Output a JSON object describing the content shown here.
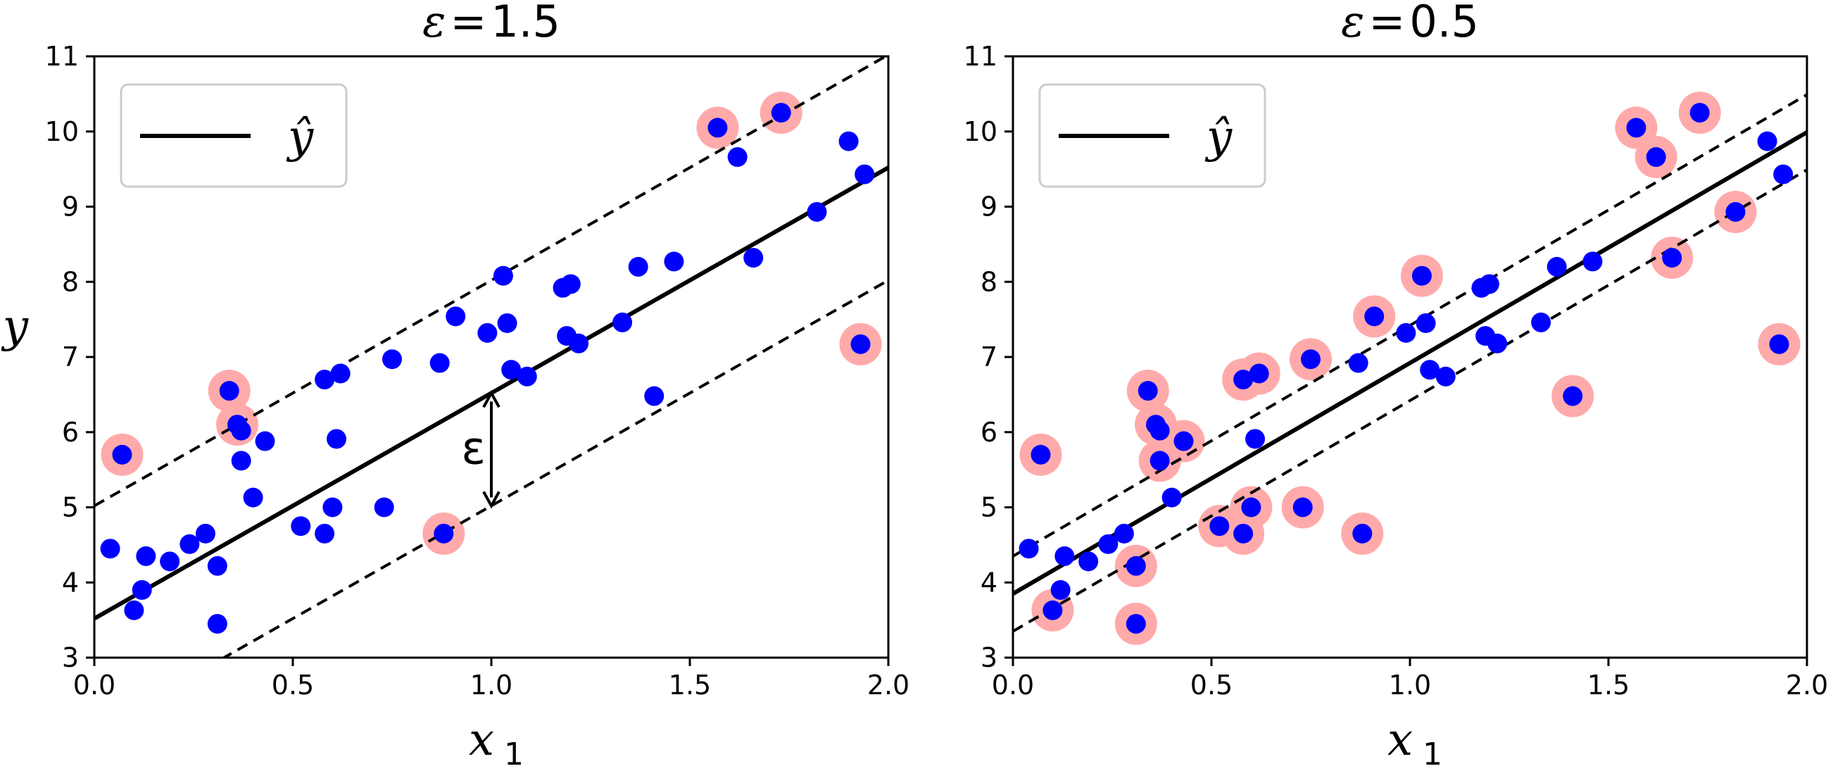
{
  "chart_data": [
    {
      "type": "scatter",
      "title_parts": {
        "symbol": "ε",
        "equals": "=",
        "value": "1.5"
      },
      "epsilon": 1.5,
      "xlabel": "x",
      "xlabel_sub": "1",
      "ylabel": "y",
      "xlim": [
        0,
        2
      ],
      "ylim": [
        3,
        11
      ],
      "xticks": [
        "0.0",
        "0.5",
        "1.0",
        "1.5",
        "2.0"
      ],
      "yticks": [
        "3",
        "4",
        "5",
        "6",
        "7",
        "8",
        "9",
        "10",
        "11"
      ],
      "legend": {
        "label": "ŷ",
        "position": "top-left"
      },
      "regression_line": {
        "intercept": 3.52,
        "slope": 3.0
      },
      "epsilon_annotation": {
        "text": "ε",
        "x": 1.0,
        "y_from": 6.52,
        "y_to": 5.02
      },
      "points": [
        [
          0.04,
          4.45
        ],
        [
          0.07,
          5.7
        ],
        [
          0.1,
          3.63
        ],
        [
          0.12,
          3.9
        ],
        [
          0.13,
          4.35
        ],
        [
          0.19,
          4.28
        ],
        [
          0.24,
          4.51
        ],
        [
          0.28,
          4.65
        ],
        [
          0.31,
          4.22
        ],
        [
          0.31,
          3.45
        ],
        [
          0.34,
          6.55
        ],
        [
          0.36,
          6.1
        ],
        [
          0.37,
          6.02
        ],
        [
          0.37,
          5.62
        ],
        [
          0.4,
          5.13
        ],
        [
          0.43,
          5.88
        ],
        [
          0.52,
          4.75
        ],
        [
          0.58,
          4.65
        ],
        [
          0.58,
          6.7
        ],
        [
          0.6,
          5.0
        ],
        [
          0.61,
          5.91
        ],
        [
          0.62,
          6.78
        ],
        [
          0.73,
          5.0
        ],
        [
          0.75,
          6.97
        ],
        [
          0.87,
          6.92
        ],
        [
          0.88,
          4.65
        ],
        [
          0.91,
          7.54
        ],
        [
          0.99,
          7.32
        ],
        [
          1.03,
          8.08
        ],
        [
          1.04,
          7.45
        ],
        [
          1.05,
          6.83
        ],
        [
          1.09,
          6.74
        ],
        [
          1.18,
          7.92
        ],
        [
          1.19,
          7.28
        ],
        [
          1.2,
          7.97
        ],
        [
          1.22,
          7.18
        ],
        [
          1.33,
          7.46
        ],
        [
          1.37,
          8.2
        ],
        [
          1.41,
          6.48
        ],
        [
          1.46,
          8.27
        ],
        [
          1.57,
          10.05
        ],
        [
          1.62,
          9.66
        ],
        [
          1.66,
          8.32
        ],
        [
          1.73,
          10.25
        ],
        [
          1.82,
          8.93
        ],
        [
          1.9,
          9.87
        ],
        [
          1.93,
          7.17
        ],
        [
          1.94,
          9.43
        ]
      ],
      "support_vectors": [
        [
          0.07,
          5.7
        ],
        [
          0.34,
          6.55
        ],
        [
          0.36,
          6.1
        ],
        [
          0.88,
          4.65
        ],
        [
          1.57,
          10.05
        ],
        [
          1.73,
          10.25
        ],
        [
          1.93,
          7.17
        ]
      ]
    },
    {
      "type": "scatter",
      "title_parts": {
        "symbol": "ε",
        "equals": "=",
        "value": "0.5"
      },
      "epsilon": 0.5,
      "xlabel": "x",
      "xlabel_sub": "1",
      "ylabel": "",
      "xlim": [
        0,
        2
      ],
      "ylim": [
        3,
        11
      ],
      "xticks": [
        "0.0",
        "0.5",
        "1.0",
        "1.5",
        "2.0"
      ],
      "yticks": [
        "3",
        "4",
        "5",
        "6",
        "7",
        "8",
        "9",
        "10",
        "11"
      ],
      "legend": {
        "label": "ŷ",
        "position": "top-left"
      },
      "regression_line": {
        "intercept": 3.85,
        "slope": 3.07
      },
      "points": [
        [
          0.04,
          4.45
        ],
        [
          0.07,
          5.7
        ],
        [
          0.1,
          3.63
        ],
        [
          0.12,
          3.9
        ],
        [
          0.13,
          4.35
        ],
        [
          0.19,
          4.28
        ],
        [
          0.24,
          4.51
        ],
        [
          0.28,
          4.65
        ],
        [
          0.31,
          4.22
        ],
        [
          0.31,
          3.45
        ],
        [
          0.34,
          6.55
        ],
        [
          0.36,
          6.1
        ],
        [
          0.37,
          6.02
        ],
        [
          0.37,
          5.62
        ],
        [
          0.4,
          5.13
        ],
        [
          0.43,
          5.88
        ],
        [
          0.52,
          4.75
        ],
        [
          0.58,
          4.65
        ],
        [
          0.58,
          6.7
        ],
        [
          0.6,
          5.0
        ],
        [
          0.61,
          5.91
        ],
        [
          0.62,
          6.78
        ],
        [
          0.73,
          5.0
        ],
        [
          0.75,
          6.97
        ],
        [
          0.87,
          6.92
        ],
        [
          0.88,
          4.65
        ],
        [
          0.91,
          7.54
        ],
        [
          0.99,
          7.32
        ],
        [
          1.03,
          8.08
        ],
        [
          1.04,
          7.45
        ],
        [
          1.05,
          6.83
        ],
        [
          1.09,
          6.74
        ],
        [
          1.18,
          7.92
        ],
        [
          1.19,
          7.28
        ],
        [
          1.2,
          7.97
        ],
        [
          1.22,
          7.18
        ],
        [
          1.33,
          7.46
        ],
        [
          1.37,
          8.2
        ],
        [
          1.41,
          6.48
        ],
        [
          1.46,
          8.27
        ],
        [
          1.57,
          10.05
        ],
        [
          1.62,
          9.66
        ],
        [
          1.66,
          8.32
        ],
        [
          1.73,
          10.25
        ],
        [
          1.82,
          8.93
        ],
        [
          1.9,
          9.87
        ],
        [
          1.93,
          7.17
        ],
        [
          1.94,
          9.43
        ]
      ],
      "support_vectors": [
        [
          0.07,
          5.7
        ],
        [
          0.1,
          3.63
        ],
        [
          0.31,
          4.22
        ],
        [
          0.31,
          3.45
        ],
        [
          0.34,
          6.55
        ],
        [
          0.36,
          6.1
        ],
        [
          0.37,
          5.62
        ],
        [
          0.43,
          5.88
        ],
        [
          0.52,
          4.75
        ],
        [
          0.58,
          4.65
        ],
        [
          0.58,
          6.7
        ],
        [
          0.6,
          5.0
        ],
        [
          0.62,
          6.78
        ],
        [
          0.73,
          5.0
        ],
        [
          0.75,
          6.97
        ],
        [
          0.88,
          4.65
        ],
        [
          0.91,
          7.54
        ],
        [
          1.03,
          8.08
        ],
        [
          1.41,
          6.48
        ],
        [
          1.57,
          10.05
        ],
        [
          1.62,
          9.66
        ],
        [
          1.66,
          8.32
        ],
        [
          1.73,
          10.25
        ],
        [
          1.82,
          8.93
        ],
        [
          1.93,
          7.17
        ]
      ]
    }
  ],
  "colors": {
    "points": "#0000ff",
    "support_vector_halo": "#ffaaaa",
    "lines": "#000000",
    "legend_border": "#cccccc"
  }
}
